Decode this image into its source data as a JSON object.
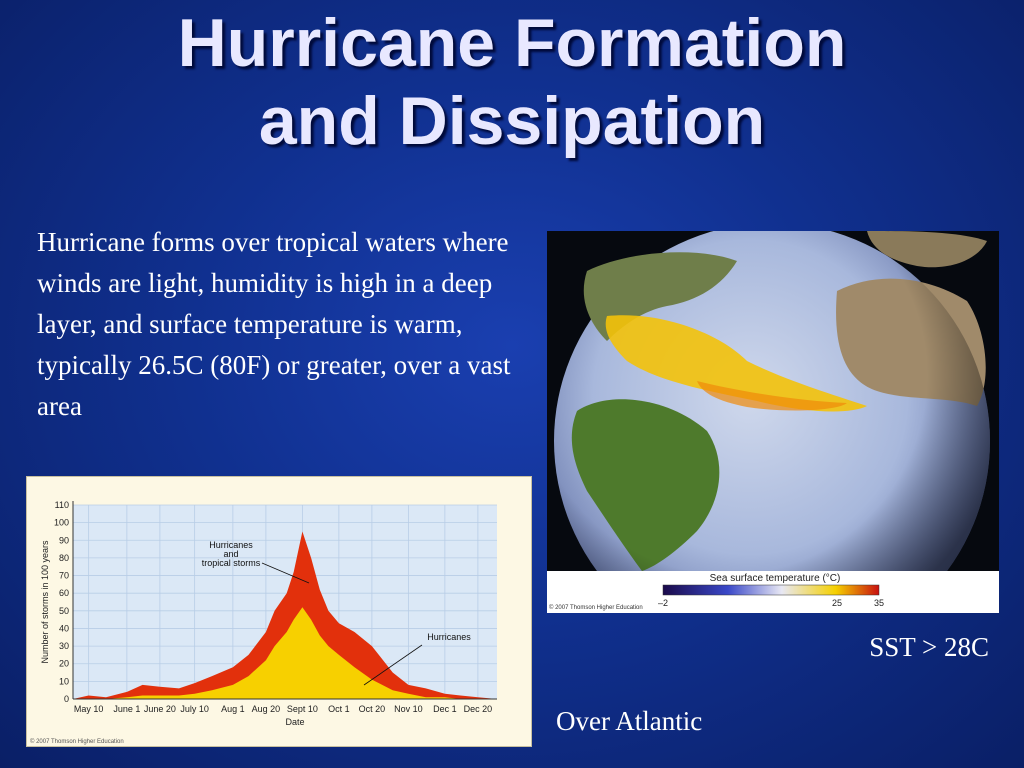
{
  "slide": {
    "title_line1": "Hurricane Formation",
    "title_line2": "and Dissipation",
    "body_text": "Hurricane forms over tropical waters where winds are light, humidity is high in a deep layer, and surface  temperature is warm, typically 26.5C (80F) or greater, over a vast area",
    "caption_sst": "SST > 28C",
    "caption_atlantic": "Over Atlantic"
  },
  "colors": {
    "background": "#10308f",
    "title": "#e8e8ff",
    "hurricanes_fill": "#f7d000",
    "storms_fill": "#e2300c"
  },
  "chart_data": {
    "type": "area",
    "xlabel": "Date",
    "ylabel": "Number of storms in 100 years",
    "ylim": [
      0,
      110
    ],
    "yticks": [
      0,
      10,
      20,
      30,
      40,
      50,
      60,
      70,
      80,
      90,
      100,
      110
    ],
    "xtick_labels": [
      "May 10",
      "June 1",
      "June 20",
      "July 10",
      "Aug 1",
      "Aug 20",
      "Sept 10",
      "Oct 1",
      "Oct 20",
      "Nov 10",
      "Dec 1",
      "Dec 20"
    ],
    "grid": true,
    "copyright": "© 2007 Thomson Higher Education",
    "annotations": [
      {
        "lines": [
          "Hurricanes",
          "and",
          "tropical storms"
        ],
        "target_series": "Hurricanes and tropical storms"
      },
      {
        "lines": [
          "Hurricanes"
        ],
        "target_series": "Hurricanes"
      }
    ],
    "series": [
      {
        "name": "Hurricanes and tropical storms",
        "color": "#e2300c",
        "x": [
          "May 1",
          "May 10",
          "May 20",
          "June 1",
          "June 10",
          "June 20",
          "July 1",
          "July 10",
          "July 20",
          "Aug 1",
          "Aug 10",
          "Aug 20",
          "Aug 25",
          "Sept 1",
          "Sept 5",
          "Sept 10",
          "Sept 15",
          "Sept 20",
          "Sept 25",
          "Oct 1",
          "Oct 10",
          "Oct 20",
          "Nov 1",
          "Nov 10",
          "Nov 20",
          "Dec 1",
          "Dec 10",
          "Dec 20",
          "Dec 31"
        ],
        "values": [
          0,
          2,
          1,
          4,
          8,
          7,
          6,
          9,
          13,
          18,
          25,
          38,
          50,
          60,
          72,
          95,
          80,
          62,
          50,
          43,
          38,
          30,
          15,
          8,
          6,
          3,
          2,
          1,
          0
        ]
      },
      {
        "name": "Hurricanes",
        "color": "#f7d000",
        "x": [
          "May 1",
          "May 10",
          "May 20",
          "June 1",
          "June 10",
          "June 20",
          "July 1",
          "July 10",
          "July 20",
          "Aug 1",
          "Aug 10",
          "Aug 20",
          "Aug 25",
          "Sept 1",
          "Sept 5",
          "Sept 10",
          "Sept 15",
          "Sept 20",
          "Sept 25",
          "Oct 1",
          "Oct 10",
          "Oct 20",
          "Nov 1",
          "Nov 10",
          "Nov 20",
          "Dec 1",
          "Dec 10",
          "Dec 20",
          "Dec 31"
        ],
        "values": [
          0,
          0,
          0,
          1,
          2,
          2,
          2,
          3,
          5,
          8,
          13,
          22,
          30,
          38,
          45,
          52,
          45,
          36,
          30,
          25,
          18,
          11,
          5,
          3,
          1,
          1,
          0,
          0,
          0
        ]
      }
    ]
  },
  "globe": {
    "legend_title": "Sea surface temperature (°C)",
    "legend_ticks": [
      "–2",
      "25",
      "35"
    ],
    "copyright": "© 2007 Thomson Higher Education"
  }
}
